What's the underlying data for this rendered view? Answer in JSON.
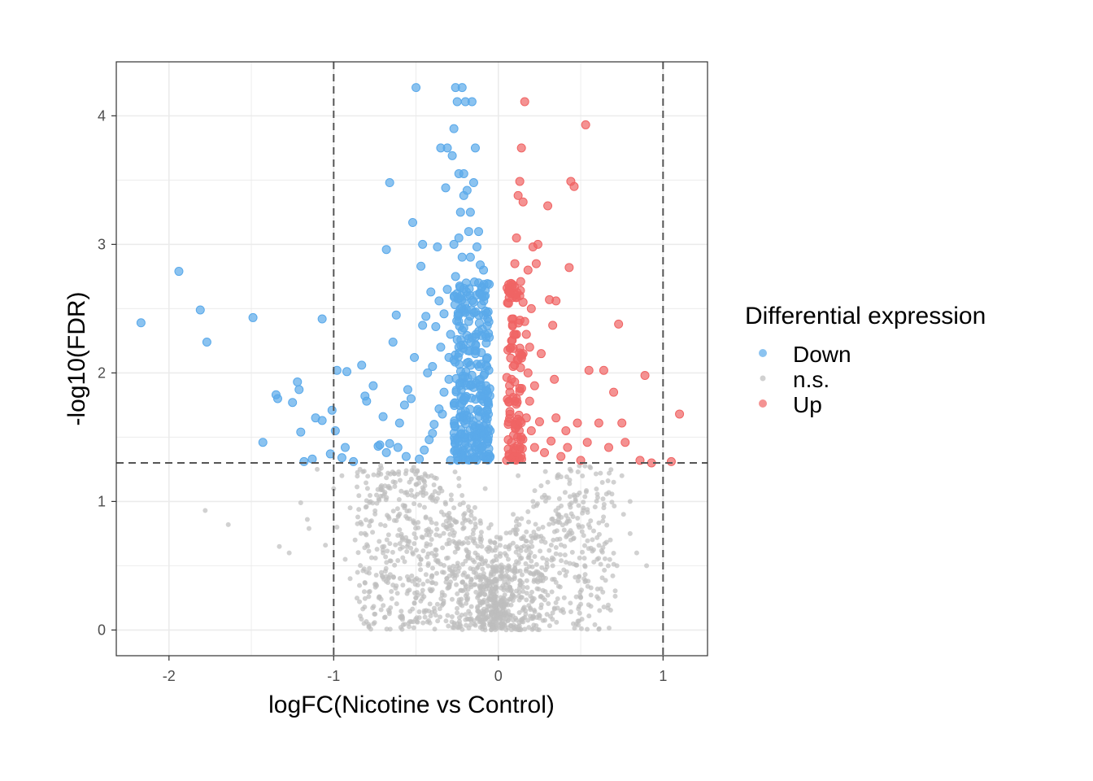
{
  "chart_data": {
    "type": "scatter",
    "title": "",
    "xlabel": "logFC(Nicotine vs Control)",
    "ylabel": "-log10(FDR)",
    "xlim": [
      -2.32,
      1.27
    ],
    "ylim": [
      -0.2,
      4.42
    ],
    "x_ticks": [
      -2,
      -1,
      0,
      1
    ],
    "y_ticks": [
      0,
      1,
      2,
      3,
      4
    ],
    "grid": true,
    "thresholds": {
      "logFC": [
        -1,
        1
      ],
      "neg_log10_fdr": 1.3
    },
    "legend": {
      "title": "Differential expression",
      "placement": "right",
      "entries": [
        "Down",
        "n.s.",
        "Up"
      ]
    },
    "colors": {
      "Down": "#5aa9ea",
      "n.s.": "#bdbdbd",
      "Up": "#f06464"
    },
    "series": [
      {
        "name": "Down",
        "points": [
          [
            -2.17,
            2.39
          ],
          [
            -1.94,
            2.79
          ],
          [
            -1.81,
            2.49
          ],
          [
            -1.77,
            2.24
          ],
          [
            -1.49,
            2.43
          ],
          [
            -1.43,
            1.46
          ],
          [
            -1.35,
            1.83
          ],
          [
            -1.34,
            1.8
          ],
          [
            -1.25,
            1.77
          ],
          [
            -1.22,
            1.93
          ],
          [
            -1.21,
            1.87
          ],
          [
            -1.2,
            1.54
          ],
          [
            -1.18,
            1.31
          ],
          [
            -1.13,
            1.33
          ],
          [
            -1.11,
            1.65
          ],
          [
            -1.07,
            1.63
          ],
          [
            -1.07,
            2.42
          ],
          [
            -1.02,
            1.37
          ],
          [
            -1.01,
            1.71
          ],
          [
            -0.99,
            1.55
          ],
          [
            -0.98,
            2.02
          ],
          [
            -0.95,
            1.34
          ],
          [
            -0.93,
            1.42
          ],
          [
            -0.92,
            2.01
          ],
          [
            -0.88,
            1.31
          ],
          [
            -0.83,
            2.06
          ],
          [
            -0.81,
            1.82
          ],
          [
            -0.8,
            1.78
          ],
          [
            -0.76,
            1.9
          ],
          [
            -0.73,
            1.43
          ],
          [
            -0.72,
            1.44
          ],
          [
            -0.7,
            1.66
          ],
          [
            -0.68,
            1.38
          ],
          [
            -0.66,
            1.45
          ],
          [
            -0.62,
            2.45
          ],
          [
            -0.64,
            2.24
          ],
          [
            -0.66,
            3.48
          ],
          [
            -0.68,
            2.96
          ],
          [
            -0.6,
            1.61
          ],
          [
            -0.57,
            1.75
          ],
          [
            -0.55,
            1.87
          ],
          [
            -0.53,
            1.8
          ],
          [
            -0.51,
            2.12
          ],
          [
            -0.5,
            4.22
          ],
          [
            -0.52,
            3.17
          ],
          [
            -0.47,
            2.83
          ],
          [
            -0.46,
            3.0
          ],
          [
            -0.46,
            2.37
          ],
          [
            -0.44,
            2.44
          ],
          [
            -0.43,
            2.0
          ],
          [
            -0.41,
            2.63
          ],
          [
            -0.4,
            1.53
          ],
          [
            -0.38,
            2.36
          ],
          [
            -0.37,
            2.98
          ],
          [
            -0.36,
            2.56
          ],
          [
            -0.35,
            3.75
          ],
          [
            -0.34,
            1.68
          ],
          [
            -0.33,
            2.46
          ],
          [
            -0.32,
            3.44
          ],
          [
            -0.31,
            3.75
          ],
          [
            -0.3,
            2.12
          ],
          [
            -0.29,
            2.3
          ],
          [
            -0.28,
            3.69
          ],
          [
            -0.27,
            3.9
          ],
          [
            -0.26,
            4.22
          ],
          [
            -0.25,
            4.11
          ],
          [
            -0.24,
            3.55
          ],
          [
            -0.23,
            3.25
          ],
          [
            -0.22,
            4.22
          ],
          [
            -0.21,
            3.55
          ],
          [
            -0.2,
            4.11
          ],
          [
            -0.19,
            3.42
          ],
          [
            -0.18,
            3.1
          ],
          [
            -0.17,
            2.9
          ],
          [
            -0.16,
            4.11
          ],
          [
            -0.15,
            3.48
          ],
          [
            -0.14,
            3.75
          ],
          [
            -0.13,
            2.98
          ],
          [
            -0.12,
            3.1
          ],
          [
            -0.11,
            2.84
          ],
          [
            -0.1,
            2.6
          ],
          [
            -0.09,
            2.45
          ],
          [
            -0.08,
            2.3
          ],
          [
            -0.07,
            2.05
          ],
          [
            -0.06,
            1.75
          ],
          [
            -0.05,
            1.55
          ],
          [
            -0.05,
            1.35
          ],
          [
            -0.09,
            2.8
          ],
          [
            -0.12,
            2.7
          ],
          [
            -0.15,
            2.55
          ],
          [
            -0.18,
            2.4
          ],
          [
            -0.21,
            2.35
          ],
          [
            -0.24,
            2.2
          ],
          [
            -0.27,
            2.1
          ],
          [
            -0.3,
            1.95
          ],
          [
            -0.33,
            1.85
          ],
          [
            -0.36,
            1.72
          ],
          [
            -0.39,
            1.6
          ],
          [
            -0.42,
            1.48
          ],
          [
            -0.45,
            1.4
          ],
          [
            -0.48,
            1.33
          ],
          [
            -0.56,
            1.35
          ],
          [
            -0.61,
            1.42
          ],
          [
            -0.22,
            2.9
          ],
          [
            -0.26,
            2.75
          ],
          [
            -0.19,
            2.6
          ],
          [
            -0.14,
            2.15
          ],
          [
            -0.11,
            1.95
          ],
          [
            -0.08,
            1.65
          ],
          [
            -0.17,
            1.9
          ],
          [
            -0.2,
            1.7
          ],
          [
            -0.23,
            1.52
          ],
          [
            -0.26,
            1.4
          ],
          [
            -0.29,
            1.32
          ],
          [
            -0.13,
            1.45
          ],
          [
            -0.16,
            1.38
          ],
          [
            -0.35,
            2.2
          ],
          [
            -0.4,
            2.05
          ],
          [
            -0.31,
            2.65
          ],
          [
            -0.24,
            3.05
          ],
          [
            -0.17,
            3.25
          ],
          [
            -0.21,
            3.38
          ],
          [
            -0.27,
            3.0
          ],
          [
            -0.12,
            2.45
          ],
          [
            -0.07,
            1.45
          ]
        ]
      },
      {
        "name": "Up",
        "points": [
          [
            0.05,
            1.32
          ],
          [
            0.06,
            1.48
          ],
          [
            0.07,
            1.7
          ],
          [
            0.08,
            1.95
          ],
          [
            0.08,
            2.25
          ],
          [
            0.09,
            2.42
          ],
          [
            0.09,
            2.62
          ],
          [
            0.1,
            1.4
          ],
          [
            0.1,
            2.85
          ],
          [
            0.11,
            1.6
          ],
          [
            0.11,
            3.05
          ],
          [
            0.12,
            2.1
          ],
          [
            0.12,
            3.38
          ],
          [
            0.13,
            1.88
          ],
          [
            0.13,
            3.49
          ],
          [
            0.14,
            3.75
          ],
          [
            0.15,
            2.55
          ],
          [
            0.16,
            4.11
          ],
          [
            0.15,
            3.33
          ],
          [
            0.17,
            2.3
          ],
          [
            0.18,
            2.0
          ],
          [
            0.19,
            1.78
          ],
          [
            0.2,
            1.55
          ],
          [
            0.21,
            2.98
          ],
          [
            0.22,
            1.42
          ],
          [
            0.23,
            2.85
          ],
          [
            0.24,
            3.0
          ],
          [
            0.25,
            1.62
          ],
          [
            0.26,
            2.15
          ],
          [
            0.28,
            1.38
          ],
          [
            0.3,
            3.3
          ],
          [
            0.31,
            2.57
          ],
          [
            0.32,
            1.47
          ],
          [
            0.33,
            2.37
          ],
          [
            0.34,
            1.95
          ],
          [
            0.35,
            2.56
          ],
          [
            0.35,
            1.65
          ],
          [
            0.38,
            1.35
          ],
          [
            0.41,
            1.55
          ],
          [
            0.42,
            1.42
          ],
          [
            0.43,
            2.82
          ],
          [
            0.44,
            3.49
          ],
          [
            0.46,
            3.45
          ],
          [
            0.48,
            1.61
          ],
          [
            0.5,
            1.32
          ],
          [
            0.53,
            3.93
          ],
          [
            0.54,
            1.46
          ],
          [
            0.55,
            2.02
          ],
          [
            0.61,
            1.61
          ],
          [
            0.64,
            2.02
          ],
          [
            0.67,
            1.42
          ],
          [
            0.7,
            1.85
          ],
          [
            0.73,
            2.38
          ],
          [
            0.75,
            1.61
          ],
          [
            0.77,
            1.46
          ],
          [
            0.86,
            1.32
          ],
          [
            0.89,
            1.98
          ],
          [
            0.93,
            1.3
          ],
          [
            1.05,
            1.31
          ],
          [
            1.1,
            1.68
          ],
          [
            0.07,
            1.85
          ],
          [
            0.09,
            2.05
          ],
          [
            0.11,
            2.3
          ],
          [
            0.13,
            2.6
          ],
          [
            0.16,
            2.4
          ],
          [
            0.19,
            2.2
          ],
          [
            0.22,
            1.9
          ],
          [
            0.14,
            1.5
          ],
          [
            0.17,
            1.65
          ],
          [
            0.06,
            1.6
          ],
          [
            0.1,
            1.78
          ],
          [
            0.12,
            1.35
          ],
          [
            0.18,
            2.8
          ],
          [
            0.2,
            2.5
          ],
          [
            0.15,
            2.15
          ]
        ]
      },
      {
        "name": "n.s.",
        "points": [
          [
            -1.78,
            0.93
          ],
          [
            -1.64,
            0.82
          ],
          [
            -1.33,
            0.65
          ],
          [
            -1.27,
            0.6
          ],
          [
            -1.2,
            0.99
          ],
          [
            -1.16,
            0.86
          ],
          [
            -1.15,
            0.79
          ],
          [
            -1.05,
            0.66
          ],
          [
            -1.0,
            1.1
          ],
          [
            -0.98,
            0.8
          ],
          [
            -0.95,
            1.2
          ],
          [
            -0.93,
            0.55
          ],
          [
            -0.9,
            0.95
          ],
          [
            -0.87,
            0.7
          ],
          [
            -0.84,
            1.25
          ],
          [
            -0.8,
            0.45
          ],
          [
            -0.77,
            0.85
          ],
          [
            -0.74,
            1.05
          ],
          [
            -0.7,
            0.6
          ],
          [
            -0.67,
            1.22
          ],
          [
            -0.64,
            0.35
          ],
          [
            -0.6,
            0.78
          ],
          [
            -0.57,
            0.95
          ],
          [
            -0.54,
            1.15
          ],
          [
            -0.5,
            0.25
          ],
          [
            -0.47,
            0.55
          ],
          [
            -0.44,
            0.88
          ],
          [
            -0.4,
            1.05
          ],
          [
            -0.37,
            0.2
          ],
          [
            -0.34,
            0.45
          ],
          [
            -0.3,
            0.7
          ],
          [
            -0.27,
            0.95
          ],
          [
            -0.24,
            1.18
          ],
          [
            -0.2,
            0.12
          ],
          [
            -0.17,
            0.35
          ],
          [
            -0.14,
            0.6
          ],
          [
            -0.11,
            0.85
          ],
          [
            -0.08,
            1.1
          ],
          [
            -0.05,
            0.05
          ],
          [
            -0.03,
            0.25
          ],
          [
            0.03,
            0.2
          ],
          [
            0.06,
            0.55
          ],
          [
            0.09,
            0.9
          ],
          [
            0.12,
            1.2
          ],
          [
            0.15,
            0.3
          ],
          [
            0.18,
            0.65
          ],
          [
            0.21,
            1.0
          ],
          [
            0.24,
            0.4
          ],
          [
            0.27,
            0.8
          ],
          [
            0.3,
            1.15
          ],
          [
            0.33,
            0.5
          ],
          [
            0.36,
            0.9
          ],
          [
            0.4,
            0.25
          ],
          [
            0.44,
            0.7
          ],
          [
            0.48,
            1.05
          ],
          [
            0.52,
            0.4
          ],
          [
            0.56,
            0.85
          ],
          [
            0.6,
            0.55
          ],
          [
            0.64,
            0.95
          ],
          [
            0.68,
            0.7
          ],
          [
            0.72,
            0.5
          ],
          [
            0.76,
            0.9
          ],
          [
            0.8,
            0.75
          ],
          [
            0.84,
            0.6
          ],
          [
            0.9,
            0.5
          ],
          [
            0.62,
            1.22
          ],
          [
            0.7,
            1.15
          ],
          [
            -1.1,
            1.25
          ],
          [
            -0.9,
            0.4
          ],
          [
            -0.65,
            0.3
          ],
          [
            0.5,
            0.2
          ],
          [
            0.38,
            0.15
          ],
          [
            -0.45,
            0.15
          ],
          [
            0.8,
            1.0
          ],
          [
            0.75,
            1.2
          ]
        ]
      }
    ]
  }
}
